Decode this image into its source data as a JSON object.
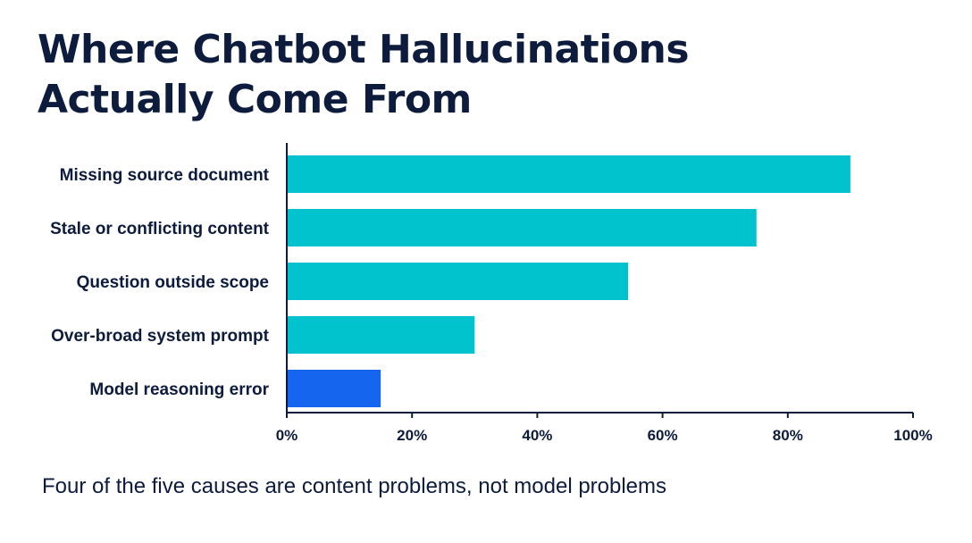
{
  "title_lines": [
    "Where Chatbot Hallucinations",
    "Actually Come From"
  ],
  "subtitle": "Four of the five causes are content problems, not model problems",
  "colors": {
    "content_bar": "#00c3ce",
    "model_bar": "#1565ee",
    "text": "#0d1b3d",
    "axis": "#0d1b3d"
  },
  "chart_data": {
    "type": "bar",
    "orientation": "horizontal",
    "categories": [
      "Missing source document",
      "Stale or conflicting content",
      "Question outside scope",
      "Over-broad system prompt",
      "Model reasoning error"
    ],
    "values": [
      90,
      75,
      54.5,
      30,
      15
    ],
    "bar_colors": [
      "#00c3ce",
      "#00c3ce",
      "#00c3ce",
      "#00c3ce",
      "#1565ee"
    ],
    "xlim": [
      0,
      100
    ],
    "xticks": [
      0,
      20,
      40,
      60,
      80,
      100
    ],
    "xtick_labels": [
      "0%",
      "20%",
      "40%",
      "60%",
      "80%",
      "100%"
    ],
    "grid": false,
    "legend": "none"
  }
}
